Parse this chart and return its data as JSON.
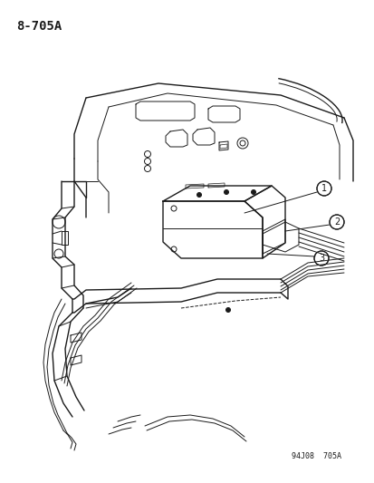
{
  "figure_id": "8-705A",
  "footer_text": "94J08  705A",
  "background_color": "#ffffff",
  "line_color": "#1a1a1a",
  "figsize": [
    4.14,
    5.33
  ],
  "dpi": 100,
  "title_fontsize": 10,
  "footer_fontsize": 6
}
